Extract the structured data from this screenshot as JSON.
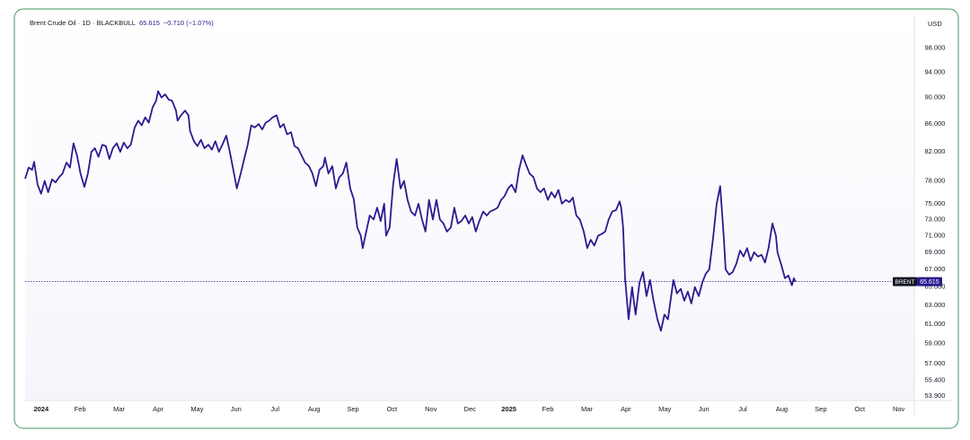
{
  "chart_data": {
    "type": "line",
    "title": "Brent Crude Oil · 1D · BLACKBULL",
    "last_price": 65.615,
    "change": "−0.710 (−1.07%)",
    "currency": "USD",
    "log_scale": true,
    "grid": false,
    "x": [
      -0.41,
      -0.32,
      -0.23,
      -0.18,
      -0.09,
      0,
      0.09,
      0.18,
      0.28,
      0.37,
      0.46,
      0.55,
      0.65,
      0.74,
      0.83,
      0.92,
      1.01,
      1.11,
      1.2,
      1.29,
      1.38,
      1.47,
      1.57,
      1.66,
      1.75,
      1.84,
      1.94,
      2.03,
      2.12,
      2.21,
      2.3,
      2.4,
      2.49,
      2.58,
      2.67,
      2.76,
      2.86,
      2.95,
      3.0,
      3.09,
      3.18,
      3.27,
      3.36,
      3.46,
      3.5,
      3.59,
      3.69,
      3.78,
      3.82,
      3.92,
      4.01,
      4.1,
      4.19,
      4.29,
      4.38,
      4.47,
      4.56,
      4.65,
      4.75,
      4.84,
      4.93,
      5.02,
      5.12,
      5.21,
      5.3,
      5.39,
      5.48,
      5.58,
      5.67,
      5.76,
      5.85,
      5.94,
      6.04,
      6.13,
      6.22,
      6.31,
      6.41,
      6.5,
      6.59,
      6.68,
      6.77,
      6.87,
      6.96,
      7.05,
      7.14,
      7.24,
      7.28,
      7.37,
      7.47,
      7.56,
      7.65,
      7.74,
      7.83,
      7.93,
      8.02,
      8.11,
      8.2,
      8.25,
      8.34,
      8.43,
      8.53,
      8.62,
      8.71,
      8.8,
      8.85,
      8.94,
      9.03,
      9.12,
      9.22,
      9.31,
      9.4,
      9.49,
      9.59,
      9.68,
      9.77,
      9.86,
      9.95,
      10.05,
      10.14,
      10.23,
      10.32,
      10.41,
      10.51,
      10.6,
      10.69,
      10.78,
      10.88,
      10.97,
      11.06,
      11.15,
      11.24,
      11.34,
      11.43,
      11.52,
      11.61,
      11.71,
      11.8,
      11.89,
      11.98,
      12.07,
      12.17,
      12.26,
      12.35,
      12.44,
      12.53,
      12.63,
      12.72,
      12.81,
      12.9,
      13.0,
      13.09,
      13.18,
      13.27,
      13.36,
      13.46,
      13.55,
      13.64,
      13.73,
      13.82,
      13.92,
      14.01,
      14.1,
      14.19,
      14.29,
      14.38,
      14.47,
      14.56,
      14.65,
      14.75,
      14.84,
      14.88,
      14.93,
      14.98,
      15.02,
      15.07,
      15.16,
      15.25,
      15.35,
      15.44,
      15.53,
      15.62,
      15.71,
      15.81,
      15.9,
      15.99,
      16.08,
      16.13,
      16.22,
      16.31,
      16.41,
      16.5,
      16.59,
      16.68,
      16.77,
      16.87,
      16.96,
      17.05,
      17.14,
      17.24,
      17.33,
      17.42,
      17.51,
      17.56,
      17.65,
      17.74,
      17.83,
      17.93,
      18.02,
      18.11,
      18.2,
      18.29,
      18.39,
      18.48,
      18.57,
      18.66,
      18.76,
      18.85,
      18.89,
      18.99,
      19.08,
      19.17,
      19.26,
      19.31,
      19.35
    ],
    "series": [
      {
        "name": "BRENT",
        "color": "#2a1b8f",
        "values": [
          78.3,
          79.8,
          79.5,
          80.6,
          77.5,
          76.3,
          78,
          76.5,
          78.2,
          77.8,
          78.5,
          79,
          80.5,
          79.8,
          83.2,
          81.5,
          79,
          77.2,
          79,
          82,
          82.5,
          81.3,
          83,
          82.8,
          81,
          82.5,
          83.2,
          82,
          83.3,
          82.5,
          83,
          85.5,
          86.5,
          85.8,
          87,
          86.2,
          88.5,
          89.5,
          91,
          90,
          90.5,
          89.7,
          89.5,
          88,
          86.5,
          87.3,
          88,
          87.3,
          85,
          83.5,
          82.8,
          83.7,
          82.5,
          83,
          82.3,
          83.5,
          82,
          83,
          84.3,
          82,
          79.5,
          77,
          79,
          81,
          83,
          85.8,
          85.5,
          86,
          85.2,
          86.2,
          86.5,
          87,
          87.3,
          85.5,
          86,
          84.5,
          84.8,
          82.8,
          82.5,
          81.5,
          80.5,
          80,
          79,
          77.3,
          79.5,
          80,
          81.2,
          79,
          80,
          77,
          78.5,
          79,
          80.5,
          77,
          75.6,
          72,
          71,
          69.5,
          71.5,
          73.5,
          73,
          74.5,
          72.8,
          75,
          71,
          72,
          77.5,
          81,
          77,
          78,
          75.5,
          74,
          73.5,
          75,
          73,
          71.5,
          75.5,
          73,
          75.5,
          73,
          72.5,
          71.5,
          72,
          74.5,
          72.5,
          72.8,
          73.5,
          72.5,
          73.3,
          71.5,
          72.8,
          74,
          73.5,
          74,
          74.2,
          74.5,
          75.5,
          76,
          77,
          77.5,
          76.5,
          79.5,
          81.5,
          80.2,
          79,
          78.5,
          77,
          76.5,
          77,
          75.5,
          76.5,
          75.8,
          76.8,
          75,
          75.5,
          75.2,
          75.8,
          73.5,
          73,
          71.5,
          69.5,
          70.5,
          69.8,
          71,
          71.2,
          71.5,
          73,
          74,
          74.2,
          75.3,
          74.5,
          72,
          66,
          64,
          61.5,
          65,
          62,
          65.5,
          66.7,
          64,
          65.8,
          63.5,
          61.5,
          60.3,
          62,
          61.5,
          63,
          65.8,
          64.3,
          64.8,
          63.5,
          64.5,
          63.2,
          65,
          64,
          65.5,
          66.5,
          67,
          70.8,
          75,
          77.3,
          71,
          67,
          66.4,
          66.7,
          67.6,
          69.2,
          68.5,
          69.5,
          68,
          69,
          68.5,
          68.7,
          67.8,
          69.5,
          72.5,
          71,
          69,
          67.5,
          66,
          66.3,
          65.2,
          66,
          65.615
        ]
      }
    ],
    "xlim": [
      -0.41,
      22.4
    ],
    "xticks": [
      {
        "value": 0,
        "label": "2024"
      },
      {
        "value": 1,
        "label": "Feb"
      },
      {
        "value": 2,
        "label": "Mar"
      },
      {
        "value": 3,
        "label": "Apr"
      },
      {
        "value": 4,
        "label": "May"
      },
      {
        "value": 5,
        "label": "Jun"
      },
      {
        "value": 6,
        "label": "Jul"
      },
      {
        "value": 7,
        "label": "Aug"
      },
      {
        "value": 8,
        "label": "Sep"
      },
      {
        "value": 9,
        "label": "Oct"
      },
      {
        "value": 10,
        "label": "Nov"
      },
      {
        "value": 11,
        "label": "Dec"
      },
      {
        "value": 12,
        "label": "2025"
      },
      {
        "value": 13,
        "label": "Feb"
      },
      {
        "value": 14,
        "label": "Mar"
      },
      {
        "value": 15,
        "label": "Apr"
      },
      {
        "value": 16,
        "label": "May"
      },
      {
        "value": 17,
        "label": "Jun"
      },
      {
        "value": 18,
        "label": "Jul"
      },
      {
        "value": 19,
        "label": "Aug"
      },
      {
        "value": 20,
        "label": "Sep"
      },
      {
        "value": 21,
        "label": "Oct"
      },
      {
        "value": 22,
        "label": "Nov"
      }
    ],
    "ylim": [
      53.5,
      103.5
    ],
    "yticks": [
      {
        "value": 98,
        "label": "98.000"
      },
      {
        "value": 94,
        "label": "94.000"
      },
      {
        "value": 90,
        "label": "90.000"
      },
      {
        "value": 86,
        "label": "86.000"
      },
      {
        "value": 82,
        "label": "82.000"
      },
      {
        "value": 78,
        "label": "78.000"
      },
      {
        "value": 75,
        "label": "75.000"
      },
      {
        "value": 73,
        "label": "73.000"
      },
      {
        "value": 71,
        "label": "71.000"
      },
      {
        "value": 69,
        "label": "69.000"
      },
      {
        "value": 67,
        "label": "67.000"
      },
      {
        "value": 65,
        "label": "65.000"
      },
      {
        "value": 63,
        "label": "63.000"
      },
      {
        "value": 61,
        "label": "61.000"
      },
      {
        "value": 59,
        "label": "59.000"
      },
      {
        "value": 57,
        "label": "57.000"
      },
      {
        "value": 55.4,
        "label": "55.400"
      },
      {
        "value": 53.9,
        "label": "53.900"
      }
    ]
  }
}
